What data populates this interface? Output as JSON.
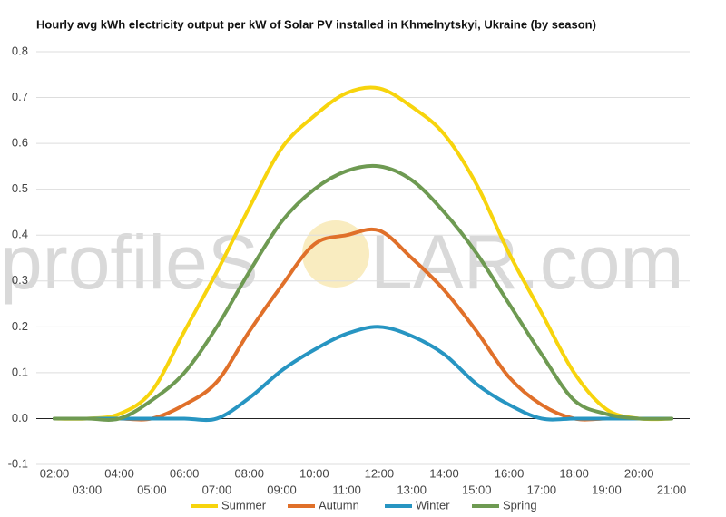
{
  "chart_data": {
    "type": "line",
    "title": "Hourly avg kWh electricity output per kW of Solar PV installed in Khmelnytskyi, Ukraine (by season)",
    "watermark": [
      "profileS",
      "LAR.com"
    ],
    "categories": [
      "02:00",
      "03:00",
      "04:00",
      "05:00",
      "06:00",
      "07:00",
      "08:00",
      "09:00",
      "10:00",
      "11:00",
      "12:00",
      "13:00",
      "14:00",
      "15:00",
      "16:00",
      "17:00",
      "18:00",
      "19:00",
      "20:00",
      "21:00"
    ],
    "series": [
      {
        "name": "Summer",
        "color": "#f7d40d",
        "values": [
          0,
          0,
          0.01,
          0.06,
          0.19,
          0.32,
          0.46,
          0.59,
          0.66,
          0.71,
          0.72,
          0.68,
          0.62,
          0.51,
          0.36,
          0.23,
          0.1,
          0.02,
          0,
          0
        ]
      },
      {
        "name": "Autumn",
        "color": "#e0702a",
        "values": [
          0,
          0,
          0,
          0,
          0.03,
          0.08,
          0.19,
          0.29,
          0.38,
          0.4,
          0.41,
          0.35,
          0.28,
          0.19,
          0.09,
          0.03,
          0,
          0,
          0,
          0
        ]
      },
      {
        "name": "Winter",
        "color": "#2795c2",
        "values": [
          0,
          0,
          0,
          0,
          0,
          0,
          0.045,
          0.105,
          0.15,
          0.185,
          0.2,
          0.18,
          0.14,
          0.075,
          0.03,
          0,
          0,
          0,
          0,
          0
        ]
      },
      {
        "name": "Spring",
        "color": "#6e9a52",
        "values": [
          0,
          0,
          0,
          0.04,
          0.1,
          0.2,
          0.32,
          0.43,
          0.5,
          0.54,
          0.55,
          0.52,
          0.45,
          0.36,
          0.25,
          0.14,
          0.04,
          0.01,
          0,
          0
        ]
      }
    ],
    "ylim": [
      -0.1,
      0.8
    ],
    "yticks": [
      -0.1,
      {
        "value": 0,
        "label": "0.0"
      },
      0.1,
      0.2,
      0.3,
      0.4,
      0.5,
      0.6,
      0.7,
      0.8
    ],
    "grid": true,
    "legend": "bottom"
  }
}
